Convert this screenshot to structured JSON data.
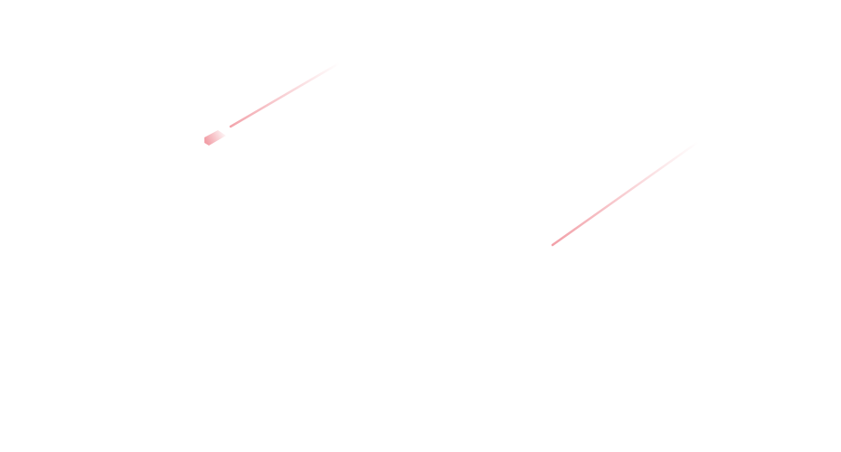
{
  "background_color": "#ffffff",
  "streak_color": "#f2a0a8",
  "elements": {
    "streak_1_icon": "shooting-star-icon",
    "streak_2_icon": "shooting-star-icon"
  }
}
